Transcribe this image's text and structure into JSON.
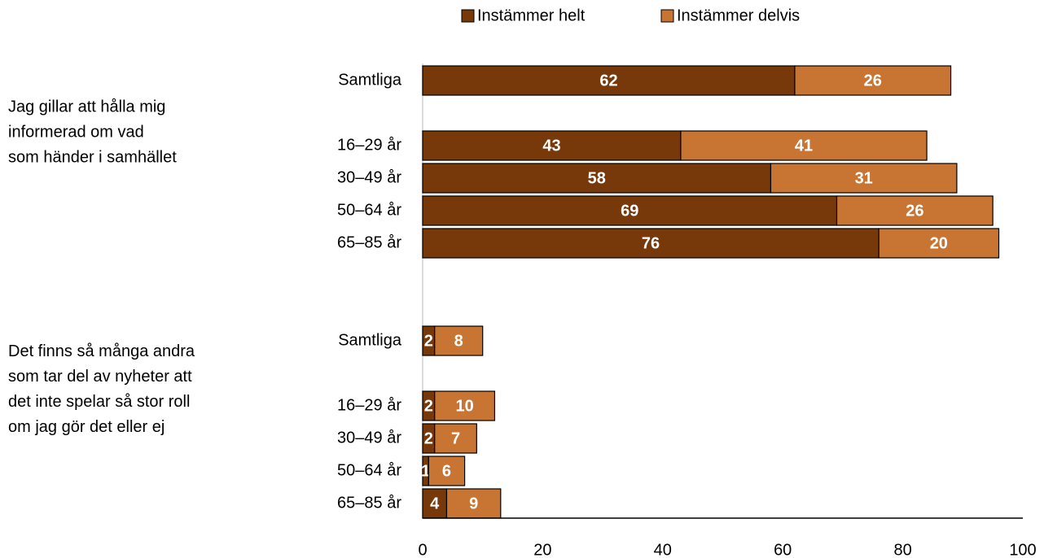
{
  "chart_data": {
    "type": "bar",
    "orientation": "horizontal",
    "stacked": true,
    "categories": [
      "Samtliga",
      null,
      "16–29 år",
      "30–49 år",
      "50–64 år",
      "65–85 år",
      null,
      null,
      "Samtliga",
      null,
      "16–29 år",
      "30–49 år",
      "50–64 år",
      "65–85 år"
    ],
    "group_labels": [
      [
        "Jag gillar att hålla mig",
        "informerad om vad",
        "som händer i samhället"
      ],
      [
        "Det finns så många andra",
        "som tar del av nyheter att",
        "det inte spelar så stor roll",
        "om jag gör det eller ej"
      ]
    ],
    "series": [
      {
        "name": "Instämmer helt",
        "color": "#77380a",
        "values": [
          62,
          null,
          43,
          58,
          69,
          76,
          null,
          null,
          2,
          null,
          2,
          2,
          1,
          4
        ]
      },
      {
        "name": "Instämmer delvis",
        "color": "#c87533",
        "values": [
          26,
          null,
          41,
          31,
          26,
          20,
          null,
          null,
          8,
          null,
          10,
          7,
          6,
          9
        ]
      }
    ],
    "xlim": [
      0,
      100
    ],
    "xticks": [
      0,
      20,
      40,
      60,
      80,
      100
    ],
    "legend": "top"
  }
}
